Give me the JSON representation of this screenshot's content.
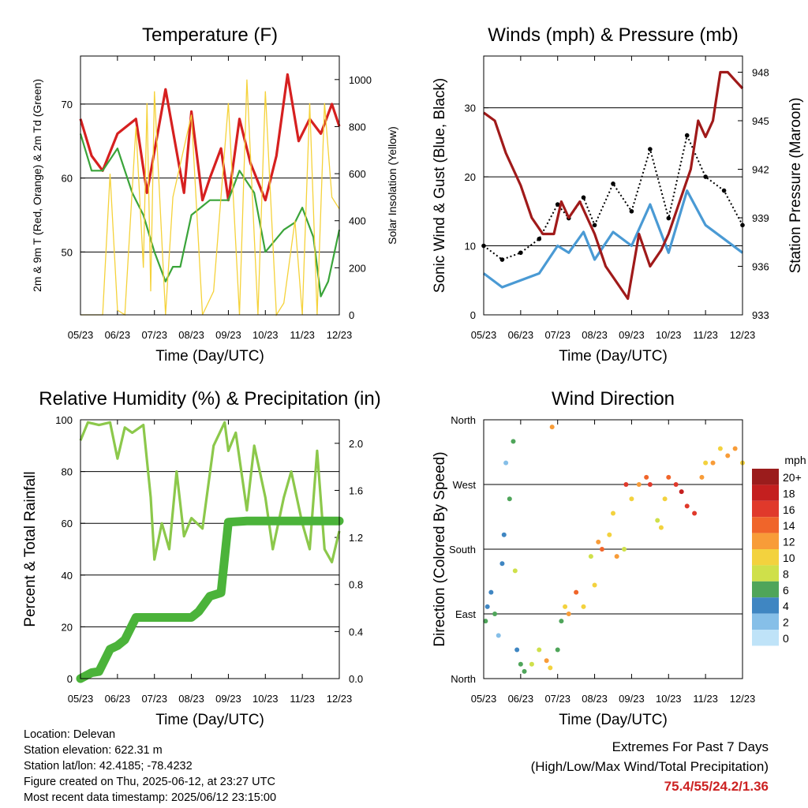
{
  "colors": {
    "temp_red": "#d62020",
    "temp_orange": "#f5a524",
    "dewpoint_green": "#3aa43a",
    "solar_yellow": "#f5d23a",
    "wind_blue": "#4a9ad4",
    "gust_black": "#000000",
    "pressure_maroon": "#a01a1a",
    "rh_lightgreen": "#8cc84b",
    "precip_green": "#4bb33a",
    "extremes_red": "#cc2222"
  },
  "chart_data": [
    {
      "id": "temperature",
      "type": "line",
      "title": "Temperature (F)",
      "xlabel": "Time (Day/UTC)",
      "ylabel": "2m & 9m T (Red, Orange) & 2m Td (Green)",
      "y2label": "Solar Insolation (Yellow)",
      "x_ticks": [
        "05/23",
        "06/23",
        "07/23",
        "08/23",
        "09/23",
        "10/23",
        "11/23",
        "12/23"
      ],
      "y_ticks": [
        50,
        60,
        70
      ],
      "y2_ticks": [
        0,
        200,
        400,
        600,
        800,
        1000
      ],
      "ylim": [
        41.5,
        76.5
      ],
      "y2lim": [
        0,
        1100
      ],
      "grid": true,
      "series": [
        {
          "name": "2m T",
          "color": "#d62020",
          "x": [
            0,
            0.3,
            0.6,
            1,
            1.5,
            1.8,
            2.3,
            2.8,
            3,
            3.3,
            3.5,
            3.8,
            4,
            4.3,
            4.6,
            5,
            5.3,
            5.6,
            5.9,
            6.2,
            6.5,
            6.8,
            7
          ],
          "y": [
            68,
            63,
            61,
            66,
            68,
            58,
            72,
            58,
            69,
            57,
            60,
            64,
            57,
            68,
            62,
            57,
            63,
            74,
            65,
            68,
            66,
            70,
            67
          ]
        },
        {
          "name": "2m Td",
          "color": "#3aa43a",
          "x": [
            0,
            0.3,
            0.6,
            1,
            1.4,
            1.7,
            2,
            2.3,
            2.5,
            2.7,
            3,
            3.5,
            4,
            4.3,
            4.7,
            5,
            5.5,
            5.8,
            6,
            6.3,
            6.5,
            6.7,
            7
          ],
          "y": [
            66,
            61,
            61,
            64,
            58,
            55,
            50,
            46,
            48,
            48,
            55,
            57,
            57,
            61,
            58,
            50,
            53,
            54,
            56,
            52,
            44,
            46,
            53
          ]
        },
        {
          "name": "Solar Insolation",
          "axis": "y2",
          "color": "#f5d23a",
          "x": [
            0,
            0.6,
            0.8,
            1,
            1.2,
            1.5,
            1.7,
            1.8,
            1.9,
            2,
            2.3,
            2.5,
            3,
            3.3,
            3.6,
            4,
            4.3,
            4.5,
            4.8,
            5,
            5.3,
            5.5,
            5.8,
            6,
            6.2,
            6.4,
            6.6,
            6.8,
            7
          ],
          "y": [
            0,
            0,
            600,
            20,
            0,
            800,
            200,
            900,
            100,
            950,
            0,
            500,
            850,
            0,
            100,
            900,
            0,
            1000,
            0,
            950,
            0,
            50,
            400,
            0,
            900,
            0,
            900,
            500,
            450
          ]
        }
      ]
    },
    {
      "id": "winds",
      "type": "line",
      "title": "Winds (mph) & Pressure (mb)",
      "xlabel": "Time (Day/UTC)",
      "ylabel": "Sonic Wind & Gust (Blue, Black)",
      "y2label": "Station Pressure (Maroon)",
      "x_ticks": [
        "05/23",
        "06/23",
        "07/23",
        "08/23",
        "09/23",
        "10/23",
        "11/23",
        "12/23"
      ],
      "y_ticks": [
        0,
        10,
        20,
        30
      ],
      "y2_ticks": [
        933,
        936,
        939,
        942,
        945,
        948
      ],
      "ylim": [
        0,
        37.5
      ],
      "y2lim": [
        933,
        949
      ],
      "grid": true,
      "series": [
        {
          "name": "Sonic Wind",
          "color": "#4a9ad4",
          "x": [
            0,
            0.5,
            1,
            1.5,
            2,
            2.3,
            2.7,
            3,
            3.5,
            4,
            4.5,
            5,
            5.5,
            6,
            6.5,
            7
          ],
          "y": [
            6,
            4,
            5,
            6,
            10,
            9,
            12,
            8,
            12,
            10,
            16,
            9,
            18,
            13,
            11,
            9
          ]
        },
        {
          "name": "Gust",
          "color": "#000000",
          "x": [
            0,
            0.5,
            1,
            1.5,
            2,
            2.3,
            2.7,
            3,
            3.5,
            4,
            4.5,
            5,
            5.5,
            6,
            6.5,
            7
          ],
          "y": [
            10,
            8,
            9,
            11,
            16,
            14,
            17,
            13,
            19,
            15,
            24,
            14,
            26,
            20,
            18,
            13
          ]
        },
        {
          "name": "Station Pressure",
          "axis": "y2",
          "color": "#a01a1a",
          "x": [
            0,
            0.3,
            0.6,
            1,
            1.3,
            1.6,
            1.9,
            2.1,
            2.3,
            2.6,
            3,
            3.3,
            3.6,
            3.9,
            4.2,
            4.5,
            4.8,
            5,
            5.3,
            5.6,
            5.8,
            6,
            6.2,
            6.4,
            6.6,
            6.8,
            7
          ],
          "y": [
            945.5,
            945,
            943,
            941,
            939,
            938,
            938,
            940,
            939,
            940,
            938,
            936,
            935,
            934,
            938,
            936,
            937,
            938,
            940,
            942,
            945,
            944,
            945,
            948,
            948,
            947.5,
            947
          ]
        }
      ]
    },
    {
      "id": "humidity",
      "type": "line",
      "title": "Relative Humidity (%) & Precipitation (in)",
      "xlabel": "Time (Day/UTC)",
      "ylabel": "Percent & Total Rainfall",
      "x_ticks": [
        "05/23",
        "06/23",
        "07/23",
        "08/23",
        "09/23",
        "10/23",
        "11/23",
        "12/23"
      ],
      "y_ticks": [
        0,
        20,
        40,
        60,
        80,
        100
      ],
      "y2_ticks": [
        "0.0",
        "0.4",
        "0.8",
        "1.2",
        "1.6",
        "2.0"
      ],
      "ylim": [
        0,
        100
      ],
      "y2lim": [
        0,
        2.2
      ],
      "grid": true,
      "series": [
        {
          "name": "Relative Humidity",
          "color": "#8cc84b",
          "x": [
            0,
            0.2,
            0.5,
            0.8,
            1,
            1.2,
            1.4,
            1.7,
            1.9,
            2,
            2.2,
            2.4,
            2.6,
            2.8,
            3,
            3.3,
            3.6,
            3.9,
            4,
            4.2,
            4.5,
            4.7,
            5,
            5.2,
            5.5,
            5.7,
            6,
            6.2,
            6.4,
            6.6,
            6.8,
            7
          ],
          "y": [
            92,
            99,
            98,
            99,
            85,
            97,
            95,
            98,
            70,
            46,
            60,
            50,
            80,
            55,
            62,
            58,
            90,
            99,
            88,
            95,
            65,
            90,
            70,
            50,
            70,
            80,
            60,
            50,
            88,
            50,
            45,
            57
          ]
        },
        {
          "name": "Total Rainfall",
          "axis": "y2",
          "color": "#4bb33a",
          "x": [
            0,
            0.3,
            0.5,
            0.8,
            1,
            1.2,
            1.5,
            2,
            2.5,
            3,
            3.2,
            3.5,
            3.8,
            4,
            4.5,
            5,
            5.5,
            6,
            6.5,
            7
          ],
          "y": [
            0,
            0.05,
            0.06,
            0.25,
            0.28,
            0.33,
            0.52,
            0.52,
            0.52,
            0.52,
            0.57,
            0.7,
            0.73,
            1.33,
            1.34,
            1.34,
            1.34,
            1.34,
            1.34,
            1.34
          ]
        }
      ]
    },
    {
      "id": "wind_direction",
      "type": "scatter",
      "title": "Wind Direction",
      "xlabel": "Time (Day/UTC)",
      "ylabel": "Direction (Colored By Speed)",
      "x_ticks": [
        "05/23",
        "06/23",
        "07/23",
        "08/23",
        "09/23",
        "10/23",
        "11/23",
        "12/23"
      ],
      "y_ticks": [
        "North",
        "East",
        "South",
        "West",
        "North"
      ],
      "ylim": [
        0,
        360
      ],
      "grid": true,
      "colorbar": {
        "title": "mph",
        "labels": [
          "20+",
          "18",
          "16",
          "14",
          "12",
          "10",
          "8",
          "6",
          "4",
          "2",
          "0"
        ],
        "colors": [
          "#9b1c1c",
          "#c41f1f",
          "#e0392b",
          "#f0652a",
          "#f89c38",
          "#f3d23e",
          "#cfe04a",
          "#4fa55a",
          "#3f86c2",
          "#86bfe8",
          "#bfe3f8"
        ]
      },
      "points": [
        [
          0.05,
          80,
          6
        ],
        [
          0.1,
          100,
          4
        ],
        [
          0.2,
          120,
          3
        ],
        [
          0.3,
          90,
          5
        ],
        [
          0.4,
          60,
          2
        ],
        [
          0.5,
          160,
          4
        ],
        [
          0.55,
          200,
          3
        ],
        [
          0.6,
          300,
          2
        ],
        [
          0.7,
          250,
          5
        ],
        [
          0.8,
          330,
          6
        ],
        [
          0.85,
          150,
          7
        ],
        [
          0.9,
          40,
          4
        ],
        [
          1,
          20,
          6
        ],
        [
          1.1,
          10,
          5
        ],
        [
          1.3,
          20,
          8
        ],
        [
          1.5,
          40,
          8
        ],
        [
          1.7,
          25,
          12
        ],
        [
          1.8,
          15,
          10
        ],
        [
          1.85,
          350,
          12
        ],
        [
          2,
          40,
          5
        ],
        [
          2.1,
          80,
          6
        ],
        [
          2.2,
          100,
          10
        ],
        [
          2.3,
          90,
          12
        ],
        [
          2.5,
          120,
          14
        ],
        [
          2.7,
          100,
          9
        ],
        [
          2.9,
          170,
          8
        ],
        [
          3,
          130,
          10
        ],
        [
          3.1,
          190,
          12
        ],
        [
          3.2,
          180,
          14
        ],
        [
          3.4,
          200,
          10
        ],
        [
          3.5,
          230,
          9
        ],
        [
          3.6,
          170,
          11
        ],
        [
          3.8,
          180,
          8
        ],
        [
          3.85,
          270,
          16
        ],
        [
          4,
          250,
          10
        ],
        [
          4.2,
          270,
          12
        ],
        [
          4.4,
          280,
          14
        ],
        [
          4.5,
          270,
          16
        ],
        [
          4.7,
          220,
          8
        ],
        [
          4.8,
          210,
          9
        ],
        [
          4.9,
          250,
          10
        ],
        [
          5,
          280,
          14
        ],
        [
          5.2,
          270,
          15
        ],
        [
          5.35,
          260,
          18
        ],
        [
          5.5,
          240,
          16
        ],
        [
          5.7,
          230,
          16
        ],
        [
          5.9,
          280,
          12
        ],
        [
          6,
          300,
          10
        ],
        [
          6.2,
          300,
          12
        ],
        [
          6.4,
          320,
          10
        ],
        [
          6.6,
          310,
          11
        ],
        [
          6.8,
          320,
          12
        ],
        [
          7,
          300,
          10
        ]
      ]
    }
  ],
  "info": {
    "location": "Location: Delevan",
    "elevation": "Station elevation: 622.31 m",
    "latlon": "Station lat/lon: 42.4185; -78.4232",
    "created": "Figure created on Thu, 2025-06-12, at 23:27 UTC",
    "latest": "Most recent data timestamp: 2025/06/12 23:15:00"
  },
  "extremes": {
    "line1": "Extremes For Past 7 Days",
    "line2": "(High/Low/Max Wind/Total Precipitation)",
    "values": "75.4/55/24.2/1.36"
  }
}
